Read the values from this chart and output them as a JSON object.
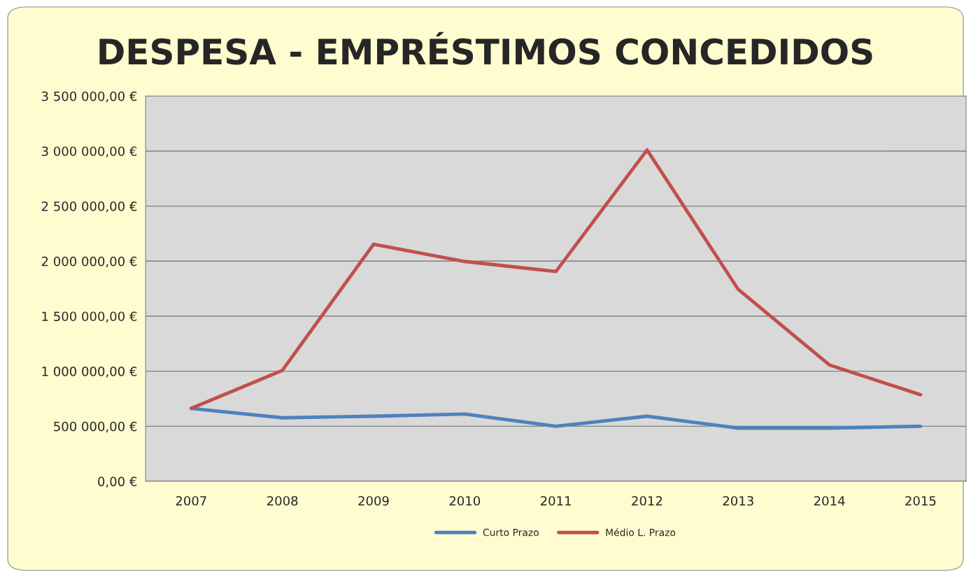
{
  "chart_data": {
    "type": "line",
    "title": "DESPESA - EMPRÉSTIMOS CONCEDIDOS",
    "categories": [
      "2007",
      "2008",
      "2009",
      "2010",
      "2011",
      "2012",
      "2013",
      "2014",
      "2015"
    ],
    "series": [
      {
        "name": "Curto Prazo",
        "color": "#4f81bd",
        "values": [
          662000,
          577000,
          591000,
          611000,
          500000,
          591000,
          483000,
          483000,
          500000
        ]
      },
      {
        "name": "Médio L. Prazo",
        "color": "#c0504d",
        "values": [
          662000,
          1008000,
          2153000,
          1997000,
          1906000,
          3010000,
          1743000,
          1057000,
          786000
        ]
      }
    ],
    "ylim": [
      0,
      3500000
    ],
    "yticks": [
      {
        "value": 0,
        "label": "0,00 €"
      },
      {
        "value": 500000,
        "label": "500 000,00 €"
      },
      {
        "value": 1000000,
        "label": "1 000 000,00 €"
      },
      {
        "value": 1500000,
        "label": "1 500 000,00 €"
      },
      {
        "value": 2000000,
        "label": "2 000 000,00 €"
      },
      {
        "value": 2500000,
        "label": "2 500 000,00 €"
      },
      {
        "value": 3000000,
        "label": "3 000 000,00 €"
      },
      {
        "value": 3500000,
        "label": "3 500 000,00 €"
      }
    ],
    "grid": "y",
    "legend": "bottom",
    "marker": "none",
    "line_style": "solid"
  }
}
